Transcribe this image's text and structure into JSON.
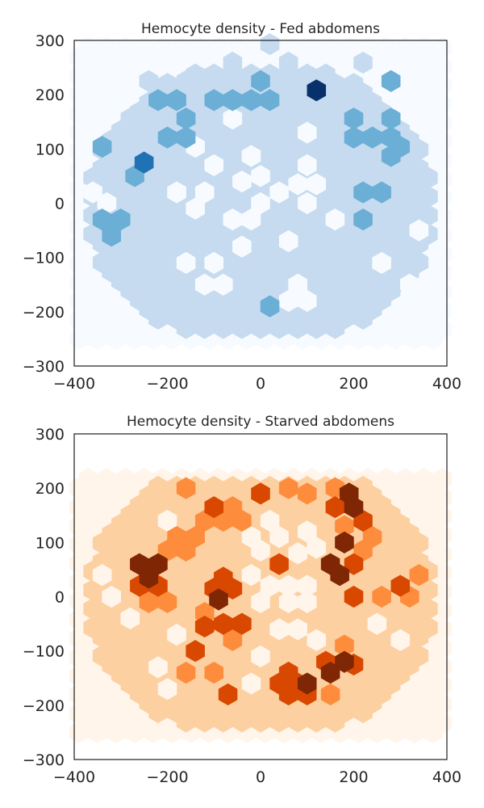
{
  "chart_data": [
    {
      "type": "heatmap",
      "subtype": "hexbin",
      "title": "Hemocyte density - Fed abdomens",
      "colormap": "Blues",
      "colors": [
        "#f7fbff",
        "#c6dbef",
        "#6baed6",
        "#2171b5",
        "#08306b"
      ],
      "xlim": [
        -400,
        400
      ],
      "ylim": [
        -300,
        300
      ],
      "xticks": [
        -400,
        -200,
        0,
        200,
        400
      ],
      "yticks": [
        -300,
        -200,
        -100,
        0,
        100,
        200,
        300
      ],
      "xtick_labels": [
        "−400",
        "−200",
        "0",
        "200",
        "400"
      ],
      "ytick_labels": [
        "−300",
        "−200",
        "−100",
        "0",
        "100",
        "200",
        "300"
      ],
      "grid": false,
      "hex_spacing": {
        "dx": 40,
        "dy": 34.6
      },
      "hexbins": [
        {
          "x": 20,
          "y": 293,
          "level": 1
        },
        {
          "x": -60,
          "y": 259,
          "level": 1
        },
        {
          "x": 60,
          "y": 259,
          "level": 1
        },
        {
          "x": 220,
          "y": 259,
          "level": 1
        },
        {
          "x": -240,
          "y": 225,
          "level": 1
        },
        {
          "x": -160,
          "y": 225,
          "level": 1
        },
        {
          "x": -80,
          "y": 225,
          "level": 1
        },
        {
          "x": 0,
          "y": 225,
          "level": 2
        },
        {
          "x": 80,
          "y": 225,
          "level": 1
        },
        {
          "x": 120,
          "y": 208,
          "level": 4
        },
        {
          "x": 280,
          "y": 225,
          "level": 2
        },
        {
          "x": -220,
          "y": 190,
          "level": 2
        },
        {
          "x": -180,
          "y": 190,
          "level": 2
        },
        {
          "x": -100,
          "y": 190,
          "level": 2
        },
        {
          "x": -60,
          "y": 190,
          "level": 2
        },
        {
          "x": -20,
          "y": 190,
          "level": 2
        },
        {
          "x": 20,
          "y": 190,
          "level": 2
        },
        {
          "x": -280,
          "y": 156,
          "level": 1
        },
        {
          "x": -200,
          "y": 156,
          "level": 1
        },
        {
          "x": -160,
          "y": 156,
          "level": 2
        },
        {
          "x": -120,
          "y": 156,
          "level": 1
        },
        {
          "x": 200,
          "y": 156,
          "level": 2
        },
        {
          "x": 280,
          "y": 156,
          "level": 2
        },
        {
          "x": -200,
          "y": 121,
          "level": 2
        },
        {
          "x": -160,
          "y": 121,
          "level": 2
        },
        {
          "x": 200,
          "y": 121,
          "level": 2
        },
        {
          "x": 240,
          "y": 121,
          "level": 2
        },
        {
          "x": 280,
          "y": 121,
          "level": 2
        },
        {
          "x": -340,
          "y": 104,
          "level": 2
        },
        {
          "x": 300,
          "y": 104,
          "level": 2
        },
        {
          "x": 280,
          "y": 87,
          "level": 2
        },
        {
          "x": -250,
          "y": 75,
          "level": 3
        },
        {
          "x": -270,
          "y": 50,
          "level": 2
        },
        {
          "x": 220,
          "y": 20,
          "level": 2
        },
        {
          "x": 260,
          "y": 20,
          "level": 2
        },
        {
          "x": -300,
          "y": -30,
          "level": 2
        },
        {
          "x": -340,
          "y": -30,
          "level": 2
        },
        {
          "x": -320,
          "y": -60,
          "level": 2
        },
        {
          "x": 220,
          "y": -30,
          "level": 2
        },
        {
          "x": 20,
          "y": -190,
          "level": 2
        }
      ],
      "empty_bins": [
        {
          "x": -60,
          "y": 156
        },
        {
          "x": 100,
          "y": 130
        },
        {
          "x": -140,
          "y": 104
        },
        {
          "x": -20,
          "y": 87
        },
        {
          "x": -100,
          "y": 70
        },
        {
          "x": 0,
          "y": 50
        },
        {
          "x": -40,
          "y": 40
        },
        {
          "x": 100,
          "y": 70
        },
        {
          "x": 80,
          "y": 35
        },
        {
          "x": 120,
          "y": 35
        },
        {
          "x": 100,
          "y": 0
        },
        {
          "x": -180,
          "y": 20
        },
        {
          "x": -120,
          "y": 20
        },
        {
          "x": 40,
          "y": 20
        },
        {
          "x": -140,
          "y": -10
        },
        {
          "x": -60,
          "y": -30
        },
        {
          "x": -20,
          "y": -30
        },
        {
          "x": 0,
          "y": 0
        },
        {
          "x": 160,
          "y": -30
        },
        {
          "x": 60,
          "y": -70
        },
        {
          "x": -40,
          "y": -80
        },
        {
          "x": -160,
          "y": -110
        },
        {
          "x": -100,
          "y": -110
        },
        {
          "x": -80,
          "y": -150
        },
        {
          "x": -120,
          "y": -150
        },
        {
          "x": 80,
          "y": -150
        },
        {
          "x": 60,
          "y": -180
        },
        {
          "x": 100,
          "y": -180
        },
        {
          "x": -360,
          "y": 20
        },
        {
          "x": -330,
          "y": 0
        },
        {
          "x": 260,
          "y": -110
        },
        {
          "x": 340,
          "y": -50
        },
        {
          "x": 320,
          "y": -150
        }
      ]
    },
    {
      "type": "heatmap",
      "subtype": "hexbin",
      "title": "Hemocyte density - Starved abdomens",
      "colormap": "Oranges",
      "colors": [
        "#fff5eb",
        "#fdd0a2",
        "#fd8d3c",
        "#d94801",
        "#7f2704"
      ],
      "xlim": [
        -400,
        400
      ],
      "ylim": [
        -300,
        300
      ],
      "xticks": [
        -400,
        -200,
        0,
        200,
        400
      ],
      "yticks": [
        -300,
        -200,
        -100,
        0,
        100,
        200,
        300
      ],
      "xtick_labels": [
        "−400",
        "−200",
        "0",
        "200",
        "400"
      ],
      "ytick_labels": [
        "−300",
        "−200",
        "−100",
        "0",
        "100",
        "200",
        "300"
      ],
      "grid": false,
      "hex_spacing": {
        "dx": 40,
        "dy": 34.6
      },
      "hexbins": [
        {
          "x": -160,
          "y": 200,
          "level": 2
        },
        {
          "x": 0,
          "y": 190,
          "level": 3
        },
        {
          "x": 60,
          "y": 200,
          "level": 2
        },
        {
          "x": 100,
          "y": 190,
          "level": 2
        },
        {
          "x": 160,
          "y": 200,
          "level": 2
        },
        {
          "x": 190,
          "y": 190,
          "level": 4
        },
        {
          "x": -100,
          "y": 165,
          "level": 3
        },
        {
          "x": -60,
          "y": 165,
          "level": 2
        },
        {
          "x": 160,
          "y": 165,
          "level": 3
        },
        {
          "x": 200,
          "y": 165,
          "level": 4
        },
        {
          "x": -120,
          "y": 140,
          "level": 2
        },
        {
          "x": -80,
          "y": 140,
          "level": 2
        },
        {
          "x": -40,
          "y": 140,
          "level": 2
        },
        {
          "x": 220,
          "y": 140,
          "level": 3
        },
        {
          "x": 180,
          "y": 130,
          "level": 2
        },
        {
          "x": 240,
          "y": 110,
          "level": 2
        },
        {
          "x": -180,
          "y": 110,
          "level": 2
        },
        {
          "x": -140,
          "y": 110,
          "level": 2
        },
        {
          "x": 180,
          "y": 100,
          "level": 4
        },
        {
          "x": -200,
          "y": 85,
          "level": 2
        },
        {
          "x": -160,
          "y": 85,
          "level": 2
        },
        {
          "x": 220,
          "y": 85,
          "level": 2
        },
        {
          "x": -260,
          "y": 60,
          "level": 4
        },
        {
          "x": -220,
          "y": 60,
          "level": 4
        },
        {
          "x": 150,
          "y": 60,
          "level": 4
        },
        {
          "x": 200,
          "y": 60,
          "level": 3
        },
        {
          "x": -240,
          "y": 35,
          "level": 4
        },
        {
          "x": 40,
          "y": 60,
          "level": 3
        },
        {
          "x": 170,
          "y": 40,
          "level": 4
        },
        {
          "x": -80,
          "y": 35,
          "level": 3
        },
        {
          "x": -260,
          "y": 20,
          "level": 3
        },
        {
          "x": -220,
          "y": 20,
          "level": 3
        },
        {
          "x": -100,
          "y": 15,
          "level": 3
        },
        {
          "x": -60,
          "y": 15,
          "level": 3
        },
        {
          "x": -90,
          "y": -5,
          "level": 4
        },
        {
          "x": 300,
          "y": 20,
          "level": 3
        },
        {
          "x": 340,
          "y": 40,
          "level": 2
        },
        {
          "x": -240,
          "y": -10,
          "level": 2
        },
        {
          "x": -200,
          "y": -10,
          "level": 2
        },
        {
          "x": 200,
          "y": 0,
          "level": 3
        },
        {
          "x": 260,
          "y": 0,
          "level": 2
        },
        {
          "x": 320,
          "y": 0,
          "level": 2
        },
        {
          "x": -120,
          "y": -30,
          "level": 2
        },
        {
          "x": -80,
          "y": -50,
          "level": 3
        },
        {
          "x": -40,
          "y": -50,
          "level": 3
        },
        {
          "x": -120,
          "y": -55,
          "level": 3
        },
        {
          "x": -60,
          "y": -80,
          "level": 2
        },
        {
          "x": 180,
          "y": -90,
          "level": 2
        },
        {
          "x": -140,
          "y": -100,
          "level": 3
        },
        {
          "x": 140,
          "y": -120,
          "level": 3
        },
        {
          "x": 180,
          "y": -120,
          "level": 4
        },
        {
          "x": 200,
          "y": -125,
          "level": 3
        },
        {
          "x": 150,
          "y": -140,
          "level": 4
        },
        {
          "x": -160,
          "y": -140,
          "level": 2
        },
        {
          "x": -100,
          "y": -140,
          "level": 2
        },
        {
          "x": 60,
          "y": -140,
          "level": 3
        },
        {
          "x": 40,
          "y": -160,
          "level": 3
        },
        {
          "x": 80,
          "y": -160,
          "level": 3
        },
        {
          "x": 100,
          "y": -160,
          "level": 4
        },
        {
          "x": 60,
          "y": -180,
          "level": 3
        },
        {
          "x": 100,
          "y": -180,
          "level": 3
        },
        {
          "x": -70,
          "y": -180,
          "level": 3
        },
        {
          "x": 150,
          "y": -180,
          "level": 2
        }
      ],
      "empty_bins": [
        {
          "x": -200,
          "y": 140
        },
        {
          "x": 20,
          "y": 140
        },
        {
          "x": 100,
          "y": 120
        },
        {
          "x": -20,
          "y": 110
        },
        {
          "x": 40,
          "y": 110
        },
        {
          "x": 0,
          "y": 85
        },
        {
          "x": 80,
          "y": 80
        },
        {
          "x": 120,
          "y": 90
        },
        {
          "x": -20,
          "y": 40
        },
        {
          "x": 20,
          "y": 20
        },
        {
          "x": 60,
          "y": 20
        },
        {
          "x": 100,
          "y": 20
        },
        {
          "x": 0,
          "y": -10
        },
        {
          "x": 60,
          "y": -10
        },
        {
          "x": 100,
          "y": -10
        },
        {
          "x": -180,
          "y": -70
        },
        {
          "x": 40,
          "y": -60
        },
        {
          "x": 80,
          "y": -60
        },
        {
          "x": 120,
          "y": -80
        },
        {
          "x": 0,
          "y": -110
        },
        {
          "x": -220,
          "y": -130
        },
        {
          "x": -200,
          "y": -170
        },
        {
          "x": 250,
          "y": -50
        },
        {
          "x": 300,
          "y": -80
        },
        {
          "x": -320,
          "y": 0
        },
        {
          "x": -340,
          "y": 40
        },
        {
          "x": -280,
          "y": -40
        },
        {
          "x": -20,
          "y": -160
        }
      ]
    }
  ]
}
